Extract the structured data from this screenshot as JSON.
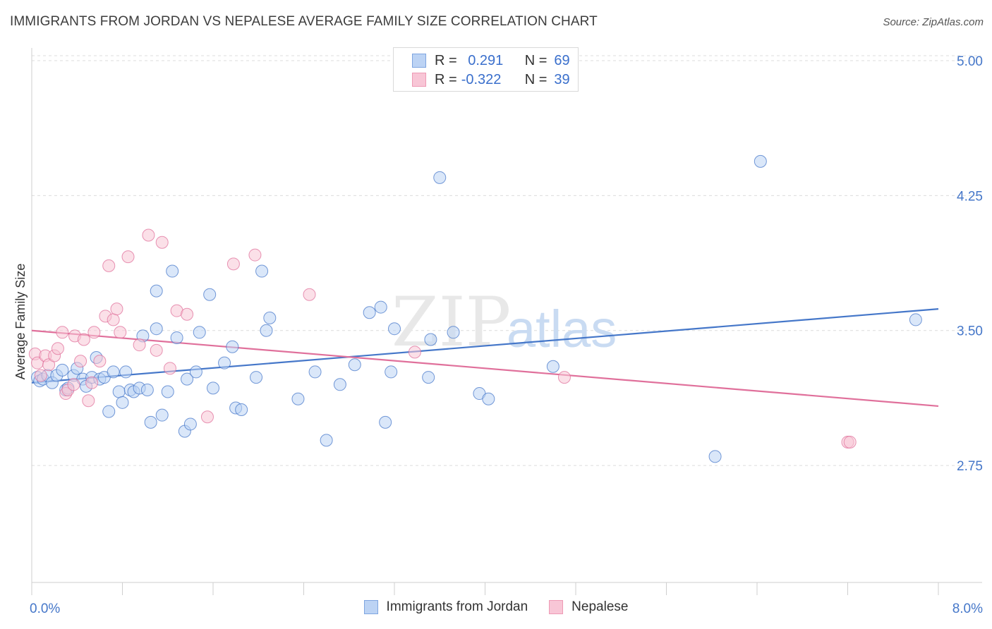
{
  "title": "IMMIGRANTS FROM JORDAN VS NEPALESE AVERAGE FAMILY SIZE CORRELATION CHART",
  "source": "Source: ZipAtlas.com",
  "watermark": {
    "zip": "ZIP",
    "atlas": "atlas"
  },
  "legend_top": [
    {
      "r_label": "R =",
      "r_value": " 0.291",
      "n_label": "N =",
      "n_value": "69",
      "fill": "#bcd3f4",
      "stroke": "#7ea5e0"
    },
    {
      "r_label": "R =",
      "r_value": "-0.322",
      "n_label": "N =",
      "n_value": "39",
      "fill": "#f8c6d6",
      "stroke": "#ee9ab5"
    }
  ],
  "legend_bottom": [
    {
      "label": "Immigrants from Jordan",
      "fill": "#bcd3f4",
      "stroke": "#7ea5e0"
    },
    {
      "label": "Nepalese",
      "fill": "#f8c6d6",
      "stroke": "#ee9ab5"
    }
  ],
  "chart_data": {
    "type": "scatter",
    "title": "IMMIGRANTS FROM JORDAN VS NEPALESE AVERAGE FAMILY SIZE CORRELATION CHART",
    "xlabel": "",
    "ylabel": "Average Family Size",
    "x_tick_labels": [
      "0.0%",
      "8.0%"
    ],
    "y_tick_labels": [
      "5.00",
      "4.25",
      "3.50",
      "2.75"
    ],
    "y_ticks": [
      5.0,
      4.25,
      3.5,
      2.75
    ],
    "xlim": [
      0,
      8.0
    ],
    "ylim": [
      2.1,
      5.09
    ],
    "grid": "horizontal dashed",
    "legend_placement": "top-center and bottom",
    "series": [
      {
        "name": "Immigrants from Jordan",
        "color": "#4577c9",
        "fill": "#bcd3f4",
        "trend": {
          "x": [
            0.0,
            8.0
          ],
          "y": [
            3.21,
            3.62
          ]
        },
        "points": [
          {
            "x": 0.05,
            "y": 3.24
          },
          {
            "x": 0.07,
            "y": 3.22
          },
          {
            "x": 0.1,
            "y": 3.23
          },
          {
            "x": 0.14,
            "y": 3.25
          },
          {
            "x": 0.18,
            "y": 3.21
          },
          {
            "x": 0.22,
            "y": 3.25
          },
          {
            "x": 0.27,
            "y": 3.28
          },
          {
            "x": 0.3,
            "y": 3.17
          },
          {
            "x": 0.32,
            "y": 3.18
          },
          {
            "x": 0.37,
            "y": 3.25
          },
          {
            "x": 0.4,
            "y": 3.29
          },
          {
            "x": 0.45,
            "y": 3.23
          },
          {
            "x": 0.48,
            "y": 3.19
          },
          {
            "x": 0.53,
            "y": 3.24
          },
          {
            "x": 0.57,
            "y": 3.35
          },
          {
            "x": 0.6,
            "y": 3.23
          },
          {
            "x": 0.64,
            "y": 3.24
          },
          {
            "x": 0.68,
            "y": 3.05
          },
          {
            "x": 0.72,
            "y": 3.27
          },
          {
            "x": 0.77,
            "y": 3.16
          },
          {
            "x": 0.8,
            "y": 3.1
          },
          {
            "x": 0.83,
            "y": 3.27
          },
          {
            "x": 0.87,
            "y": 3.17
          },
          {
            "x": 0.9,
            "y": 3.16
          },
          {
            "x": 0.95,
            "y": 3.18
          },
          {
            "x": 0.98,
            "y": 3.47
          },
          {
            "x": 1.02,
            "y": 3.17
          },
          {
            "x": 1.05,
            "y": 2.99
          },
          {
            "x": 1.1,
            "y": 3.72
          },
          {
            "x": 1.1,
            "y": 3.51
          },
          {
            "x": 1.15,
            "y": 3.03
          },
          {
            "x": 1.2,
            "y": 3.16
          },
          {
            "x": 1.24,
            "y": 3.83
          },
          {
            "x": 1.28,
            "y": 3.46
          },
          {
            "x": 1.35,
            "y": 2.94
          },
          {
            "x": 1.37,
            "y": 3.23
          },
          {
            "x": 1.4,
            "y": 2.98
          },
          {
            "x": 1.45,
            "y": 3.27
          },
          {
            "x": 1.48,
            "y": 3.49
          },
          {
            "x": 1.57,
            "y": 3.7
          },
          {
            "x": 1.6,
            "y": 3.18
          },
          {
            "x": 1.7,
            "y": 3.32
          },
          {
            "x": 1.77,
            "y": 3.41
          },
          {
            "x": 1.8,
            "y": 3.07
          },
          {
            "x": 1.85,
            "y": 3.06
          },
          {
            "x": 1.98,
            "y": 3.24
          },
          {
            "x": 2.03,
            "y": 3.83
          },
          {
            "x": 2.07,
            "y": 3.5
          },
          {
            "x": 2.1,
            "y": 3.57
          },
          {
            "x": 2.35,
            "y": 3.12
          },
          {
            "x": 2.5,
            "y": 3.27
          },
          {
            "x": 2.6,
            "y": 2.89
          },
          {
            "x": 2.72,
            "y": 3.2
          },
          {
            "x": 2.85,
            "y": 3.31
          },
          {
            "x": 2.98,
            "y": 3.6
          },
          {
            "x": 3.08,
            "y": 3.63
          },
          {
            "x": 3.12,
            "y": 2.99
          },
          {
            "x": 3.17,
            "y": 3.27
          },
          {
            "x": 3.2,
            "y": 3.51
          },
          {
            "x": 3.5,
            "y": 3.24
          },
          {
            "x": 3.52,
            "y": 3.45
          },
          {
            "x": 3.6,
            "y": 4.35
          },
          {
            "x": 3.72,
            "y": 3.49
          },
          {
            "x": 3.95,
            "y": 3.15
          },
          {
            "x": 4.03,
            "y": 3.12
          },
          {
            "x": 4.6,
            "y": 3.3
          },
          {
            "x": 6.03,
            "y": 2.8
          },
          {
            "x": 6.43,
            "y": 4.44
          },
          {
            "x": 7.8,
            "y": 3.56
          }
        ]
      },
      {
        "name": "Nepalese",
        "color": "#e0709b",
        "fill": "#f8c6d6",
        "trend": {
          "x": [
            0.0,
            8.0
          ],
          "y": [
            3.5,
            3.08
          ]
        },
        "points": [
          {
            "x": 0.03,
            "y": 3.37
          },
          {
            "x": 0.05,
            "y": 3.32
          },
          {
            "x": 0.08,
            "y": 3.25
          },
          {
            "x": 0.12,
            "y": 3.36
          },
          {
            "x": 0.15,
            "y": 3.31
          },
          {
            "x": 0.2,
            "y": 3.36
          },
          {
            "x": 0.23,
            "y": 3.4
          },
          {
            "x": 0.27,
            "y": 3.49
          },
          {
            "x": 0.3,
            "y": 3.15
          },
          {
            "x": 0.32,
            "y": 3.17
          },
          {
            "x": 0.37,
            "y": 3.2
          },
          {
            "x": 0.38,
            "y": 3.47
          },
          {
            "x": 0.43,
            "y": 3.33
          },
          {
            "x": 0.46,
            "y": 3.45
          },
          {
            "x": 0.5,
            "y": 3.11
          },
          {
            "x": 0.53,
            "y": 3.21
          },
          {
            "x": 0.55,
            "y": 3.49
          },
          {
            "x": 0.6,
            "y": 3.33
          },
          {
            "x": 0.65,
            "y": 3.58
          },
          {
            "x": 0.68,
            "y": 3.86
          },
          {
            "x": 0.72,
            "y": 3.56
          },
          {
            "x": 0.75,
            "y": 3.62
          },
          {
            "x": 0.78,
            "y": 3.49
          },
          {
            "x": 0.85,
            "y": 3.91
          },
          {
            "x": 0.95,
            "y": 3.42
          },
          {
            "x": 1.03,
            "y": 4.03
          },
          {
            "x": 1.1,
            "y": 3.39
          },
          {
            "x": 1.15,
            "y": 3.99
          },
          {
            "x": 1.22,
            "y": 3.29
          },
          {
            "x": 1.28,
            "y": 3.61
          },
          {
            "x": 1.37,
            "y": 3.59
          },
          {
            "x": 1.55,
            "y": 3.02
          },
          {
            "x": 1.78,
            "y": 3.87
          },
          {
            "x": 1.97,
            "y": 3.92
          },
          {
            "x": 2.45,
            "y": 3.7
          },
          {
            "x": 3.38,
            "y": 3.38
          },
          {
            "x": 4.7,
            "y": 3.24
          },
          {
            "x": 7.2,
            "y": 2.88
          },
          {
            "x": 7.22,
            "y": 2.88
          }
        ]
      }
    ]
  }
}
